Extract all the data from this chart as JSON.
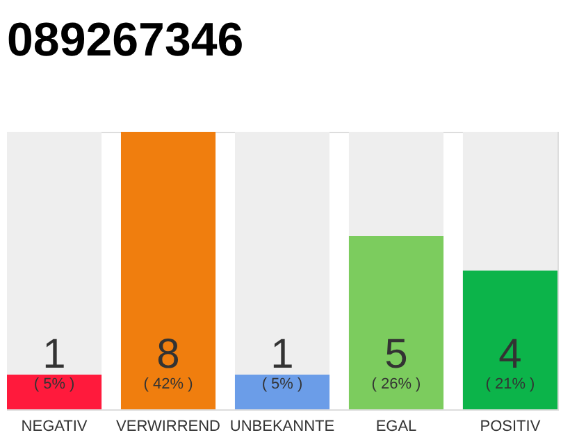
{
  "chart_data": {
    "type": "bar",
    "title": "089267346",
    "categories": [
      "NEGATIV",
      "VERWIRREND",
      "UNBEKANNTE",
      "EGAL",
      "POSITIV"
    ],
    "values": [
      1,
      8,
      1,
      5,
      4
    ],
    "colors": [
      "#ff1a3c",
      "#f07e0e",
      "#6b9de8",
      "#7ccc5e",
      "#0cb44a"
    ],
    "ylim": [
      0,
      8
    ],
    "data_labels": true,
    "grid": false,
    "tick_labels": "x",
    "annotations": [
      "( 5% )",
      "( 42% )",
      "( 5% )",
      "( 26% )",
      "( 21% )"
    ]
  }
}
